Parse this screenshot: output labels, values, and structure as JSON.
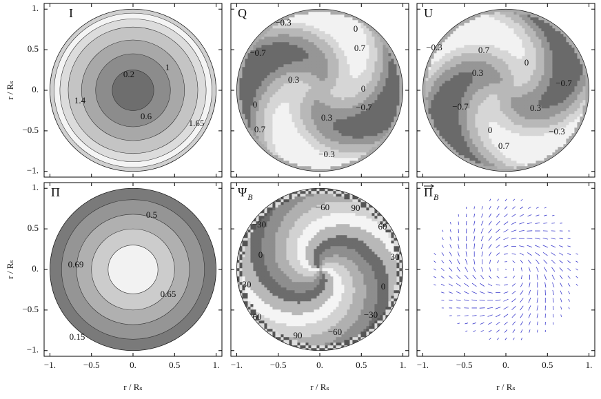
{
  "chart_data": [
    {
      "type": "disc",
      "title": "I",
      "xlim": [
        -1.07,
        1.07
      ],
      "ylim": [
        -1.07,
        1.07
      ],
      "yticks": [
        {
          "value": -1,
          "label": "−1."
        },
        {
          "value": -0.5,
          "label": "−0.5"
        },
        {
          "value": 0,
          "label": "0."
        },
        0.5,
        {
          "value": 1,
          "label": "1."
        }
      ],
      "ylabel": "r / Rₛ",
      "contour_labels": [
        "1",
        "0.2",
        "1.4",
        "0.6",
        "1.65"
      ]
    },
    {
      "type": "swirl",
      "title": "Q",
      "xlim": [
        -1.07,
        1.07
      ],
      "ylim": [
        -1.07,
        1.07
      ],
      "contour_labels": [
        "−0.3",
        "0",
        "−0.7",
        "0.7",
        "0.3",
        "0",
        "0",
        "−0.7",
        "0.3",
        "0.7",
        "−0.3"
      ]
    },
    {
      "type": "swirl",
      "title": "U",
      "xlim": [
        -1.07,
        1.07
      ],
      "ylim": [
        -1.07,
        1.07
      ],
      "contour_labels": [
        "−0.3",
        "0.7",
        "0",
        "0.3",
        "−0.7",
        "−0.7",
        "0.3",
        "0",
        "−0.3",
        "0.7"
      ]
    },
    {
      "type": "rings",
      "title": "Π",
      "xlim": [
        -1.07,
        1.07
      ],
      "ylim": [
        -1.07,
        1.07
      ],
      "xticks": [
        {
          "value": -1,
          "label": "−1."
        },
        {
          "value": -0.5,
          "label": "−0.5"
        },
        {
          "value": 0,
          "label": "0."
        },
        0.5,
        {
          "value": 1,
          "label": "1."
        }
      ],
      "yticks": [
        {
          "value": -1,
          "label": "−1."
        },
        {
          "value": -0.5,
          "label": "−0.5"
        },
        {
          "value": 0,
          "label": "0."
        },
        0.5,
        {
          "value": 1,
          "label": "1."
        }
      ],
      "xlabel": "r / Rₛ",
      "ylabel": "r / Rₛ",
      "contour_labels": [
        "0.5",
        "0.69",
        "0.65",
        "0.15"
      ]
    },
    {
      "type": "angle",
      "title": "Ψ",
      "title_sub": "B",
      "xlim": [
        -1.07,
        1.07
      ],
      "ylim": [
        -1.07,
        1.07
      ],
      "xticks": [
        {
          "value": -1,
          "label": "−1."
        },
        {
          "value": -0.5,
          "label": "−0.5"
        },
        {
          "value": 0,
          "label": "0."
        },
        0.5,
        {
          "value": 1,
          "label": "1."
        }
      ],
      "xlabel": "r / Rₛ",
      "contour_labels": [
        "−60",
        "90",
        "−30",
        "60",
        "0",
        "30",
        "30",
        "0",
        "60",
        "−30",
        "90",
        "−60"
      ]
    },
    {
      "type": "quiver",
      "title": "Π",
      "title_sub": "B",
      "xlim": [
        -1.07,
        1.07
      ],
      "ylim": [
        -1.07,
        1.07
      ],
      "xticks": [
        {
          "value": -1,
          "label": "−1."
        },
        {
          "value": -0.5,
          "label": "−0.5"
        },
        {
          "value": 0,
          "label": "0."
        },
        0.5,
        {
          "value": 1,
          "label": "1."
        }
      ],
      "xlabel": "r / Rₛ",
      "contour_labels": []
    }
  ]
}
